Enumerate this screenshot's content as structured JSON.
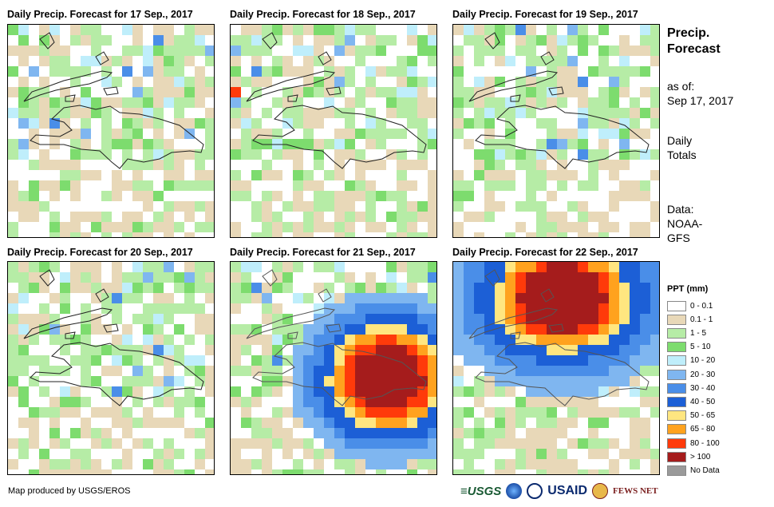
{
  "panels": [
    {
      "title": "Daily Precip. Forecast for 17 Sep., 2017"
    },
    {
      "title": "Daily Precip. Forecast for 18 Sep., 2017"
    },
    {
      "title": "Daily Precip. Forecast for 19 Sep., 2017"
    },
    {
      "title": "Daily Precip. Forecast for 20 Sep., 2017"
    },
    {
      "title": "Daily Precip. Forecast for 21 Sep., 2017"
    },
    {
      "title": "Daily Precip. Forecast for 22 Sep., 2017"
    }
  ],
  "sidebar": {
    "title_line1": "Precip.",
    "title_line2": "Forecast",
    "asof_line1": "as of:",
    "asof_line2": "Sep 17, 2017",
    "daily_line1": "Daily",
    "daily_line2": "Totals",
    "data_line1": "Data:",
    "data_line2": "NOAA-",
    "data_line3": "GFS"
  },
  "legend": {
    "title": "PPT (mm)",
    "items": [
      {
        "label": "0 - 0.1",
        "color": "#ffffff"
      },
      {
        "label": "0.1 - 1",
        "color": "#e8d8b8"
      },
      {
        "label": "1 - 5",
        "color": "#b6eca6"
      },
      {
        "label": "5 - 10",
        "color": "#7ddc6e"
      },
      {
        "label": "10 - 20",
        "color": "#bfeefb"
      },
      {
        "label": "20 - 30",
        "color": "#7fb6f0"
      },
      {
        "label": "30 - 40",
        "color": "#4a8ee8"
      },
      {
        "label": "40 - 50",
        "color": "#1c5fd6"
      },
      {
        "label": "50 - 65",
        "color": "#ffe680"
      },
      {
        "label": "65 - 80",
        "color": "#ffa21e"
      },
      {
        "label": "80 - 100",
        "color": "#ff3a0a"
      },
      {
        "label": "> 100",
        "color": "#a51c1c"
      },
      {
        "label": "No Data",
        "color": "#9a9a9a"
      }
    ]
  },
  "footer": {
    "credit": "Map produced by USGS/EROS",
    "logo_usgs": "≡USGS",
    "logo_usaid": "USAID",
    "logo_fews": "FEWS NET"
  }
}
